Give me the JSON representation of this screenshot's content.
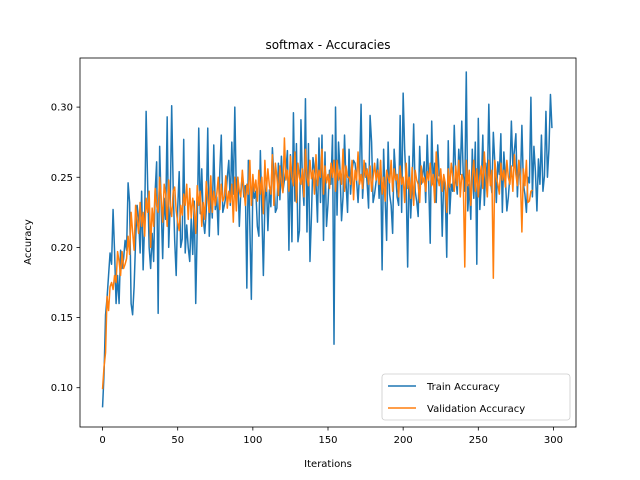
{
  "chart_data": {
    "type": "line",
    "title": "softmax - Accuracies",
    "xlabel": "Iterations",
    "ylabel": "Accuracy",
    "xlim": [
      -15,
      315
    ],
    "ylim": [
      0.072,
      0.335
    ],
    "xticks": [
      0,
      50,
      100,
      150,
      200,
      250,
      300
    ],
    "yticks": [
      0.1,
      0.15,
      0.2,
      0.25,
      0.3
    ],
    "ytick_labels": [
      "0.10",
      "0.15",
      "0.20",
      "0.25",
      "0.30"
    ],
    "grid": false,
    "legend_position": "lower-right",
    "series": [
      {
        "name": "Train Accuracy",
        "color": "#1f77b4",
        "values": [
          0.086,
          0.11,
          0.152,
          0.164,
          0.18,
          0.196,
          0.188,
          0.227,
          0.197,
          0.16,
          0.18,
          0.16,
          0.198,
          0.185,
          0.192,
          0.205,
          0.198,
          0.246,
          0.232,
          0.16,
          0.152,
          0.172,
          0.205,
          0.23,
          0.22,
          0.196,
          0.24,
          0.184,
          0.218,
          0.297,
          0.245,
          0.2,
          0.185,
          0.21,
          0.19,
          0.24,
          0.261,
          0.153,
          0.272,
          0.23,
          0.192,
          0.235,
          0.22,
          0.293,
          0.2,
          0.23,
          0.301,
          0.242,
          0.205,
          0.18,
          0.228,
          0.254,
          0.2,
          0.206,
          0.277,
          0.196,
          0.216,
          0.2,
          0.19,
          0.221,
          0.195,
          0.233,
          0.16,
          0.215,
          0.285,
          0.224,
          0.256,
          0.22,
          0.21,
          0.226,
          0.285,
          0.208,
          0.24,
          0.221,
          0.273,
          0.227,
          0.236,
          0.209,
          0.254,
          0.28,
          0.225,
          0.23,
          0.236,
          0.25,
          0.262,
          0.23,
          0.275,
          0.238,
          0.3,
          0.239,
          0.25,
          0.215,
          0.24,
          0.251,
          0.236,
          0.244,
          0.171,
          0.262,
          0.215,
          0.163,
          0.245,
          0.235,
          0.24,
          0.215,
          0.208,
          0.269,
          0.225,
          0.18,
          0.232,
          0.248,
          0.212,
          0.241,
          0.229,
          0.271,
          0.25,
          0.225,
          0.228,
          0.26,
          0.234,
          0.265,
          0.24,
          0.248,
          0.255,
          0.269,
          0.198,
          0.266,
          0.204,
          0.296,
          0.233,
          0.274,
          0.204,
          0.212,
          0.291,
          0.246,
          0.23,
          0.306,
          0.211,
          0.274,
          0.19,
          0.223,
          0.264,
          0.256,
          0.246,
          0.218,
          0.278,
          0.232,
          0.28,
          0.205,
          0.268,
          0.215,
          0.231,
          0.255,
          0.245,
          0.28,
          0.131,
          0.3,
          0.223,
          0.275,
          0.255,
          0.219,
          0.236,
          0.28,
          0.246,
          0.225,
          0.27,
          0.238,
          0.255,
          0.262,
          0.26,
          0.248,
          0.232,
          0.253,
          0.302,
          0.235,
          0.255,
          0.26,
          0.246,
          0.228,
          0.294,
          0.275,
          0.232,
          0.238,
          0.247,
          0.263,
          0.235,
          0.261,
          0.184,
          0.27,
          0.235,
          0.205,
          0.275,
          0.238,
          0.23,
          0.21,
          0.27,
          0.252,
          0.236,
          0.23,
          0.294,
          0.225,
          0.31,
          0.27,
          0.245,
          0.186,
          0.265,
          0.221,
          0.245,
          0.288,
          0.24,
          0.233,
          0.222,
          0.272,
          0.245,
          0.252,
          0.261,
          0.232,
          0.28,
          0.246,
          0.203,
          0.29,
          0.245,
          0.26,
          0.232,
          0.273,
          0.251,
          0.253,
          0.208,
          0.25,
          0.24,
          0.193,
          0.276,
          0.224,
          0.245,
          0.24,
          0.287,
          0.25,
          0.238,
          0.27,
          0.252,
          0.29,
          0.251,
          0.24,
          0.325,
          0.226,
          0.245,
          0.22,
          0.27,
          0.235,
          0.275,
          0.188,
          0.292,
          0.227,
          0.245,
          0.28,
          0.23,
          0.26,
          0.244,
          0.302,
          0.25,
          0.239,
          0.282,
          0.26,
          0.232,
          0.261,
          0.252,
          0.281,
          0.225,
          0.268,
          0.25,
          0.226,
          0.236,
          0.251,
          0.29,
          0.258,
          0.269,
          0.281,
          0.236,
          0.262,
          0.245,
          0.287,
          0.245,
          0.238,
          0.225,
          0.25,
          0.246,
          0.307,
          0.236,
          0.272,
          0.254,
          0.226,
          0.263,
          0.245,
          0.28,
          0.24,
          0.251,
          0.297,
          0.25,
          0.27,
          0.309,
          0.285
        ]
      },
      {
        "name": "Validation Accuracy",
        "color": "#ff7f0e",
        "values": [
          0.099,
          0.115,
          0.125,
          0.165,
          0.155,
          0.172,
          0.175,
          0.17,
          0.18,
          0.175,
          0.197,
          0.19,
          0.18,
          0.197,
          0.185,
          0.188,
          0.192,
          0.208,
          0.195,
          0.225,
          0.211,
          0.198,
          0.23,
          0.22,
          0.21,
          0.232,
          0.215,
          0.225,
          0.208,
          0.235,
          0.225,
          0.24,
          0.2,
          0.228,
          0.215,
          0.242,
          0.23,
          0.225,
          0.25,
          0.235,
          0.218,
          0.245,
          0.238,
          0.215,
          0.248,
          0.23,
          0.222,
          0.24,
          0.243,
          0.226,
          0.218,
          0.212,
          0.23,
          0.223,
          0.238,
          0.23,
          0.245,
          0.22,
          0.242,
          0.221,
          0.235,
          0.227,
          0.21,
          0.244,
          0.23,
          0.24,
          0.215,
          0.232,
          0.22,
          0.247,
          0.235,
          0.225,
          0.251,
          0.225,
          0.24,
          0.23,
          0.238,
          0.25,
          0.227,
          0.245,
          0.233,
          0.236,
          0.251,
          0.228,
          0.24,
          0.232,
          0.245,
          0.218,
          0.25,
          0.226,
          0.25,
          0.24,
          0.236,
          0.255,
          0.242,
          0.23,
          0.245,
          0.238,
          0.262,
          0.23,
          0.252,
          0.24,
          0.248,
          0.233,
          0.255,
          0.238,
          0.25,
          0.224,
          0.262,
          0.24,
          0.256,
          0.244,
          0.238,
          0.266,
          0.23,
          0.26,
          0.25,
          0.237,
          0.258,
          0.246,
          0.239,
          0.278,
          0.248,
          0.255,
          0.24,
          0.265,
          0.25,
          0.244,
          0.268,
          0.232,
          0.26,
          0.25,
          0.245,
          0.256,
          0.236,
          0.27,
          0.25,
          0.244,
          0.262,
          0.249,
          0.255,
          0.238,
          0.266,
          0.244,
          0.255,
          0.25,
          0.27,
          0.238,
          0.258,
          0.246,
          0.252,
          0.242,
          0.26,
          0.25,
          0.262,
          0.24,
          0.262,
          0.248,
          0.255,
          0.245,
          0.27,
          0.24,
          0.258,
          0.25,
          0.25,
          0.245,
          0.262,
          0.234,
          0.255,
          0.248,
          0.268,
          0.245,
          0.252,
          0.242,
          0.262,
          0.25,
          0.256,
          0.245,
          0.258,
          0.24,
          0.25,
          0.26,
          0.248,
          0.255,
          0.245,
          0.262,
          0.238,
          0.25,
          0.233,
          0.255,
          0.25,
          0.246,
          0.262,
          0.24,
          0.256,
          0.248,
          0.252,
          0.236,
          0.258,
          0.245,
          0.25,
          0.232,
          0.26,
          0.242,
          0.25,
          0.235,
          0.257,
          0.23,
          0.255,
          0.248,
          0.245,
          0.232,
          0.258,
          0.246,
          0.25,
          0.24,
          0.254,
          0.248,
          0.26,
          0.244,
          0.252,
          0.232,
          0.268,
          0.25,
          0.244,
          0.256,
          0.24,
          0.252,
          0.246,
          0.225,
          0.256,
          0.243,
          0.26,
          0.25,
          0.24,
          0.258,
          0.244,
          0.262,
          0.236,
          0.252,
          0.248,
          0.186,
          0.262,
          0.244,
          0.255,
          0.23,
          0.25,
          0.262,
          0.24,
          0.256,
          0.236,
          0.25,
          0.258,
          0.242,
          0.268,
          0.25,
          0.236,
          0.262,
          0.244,
          0.255,
          0.178,
          0.262,
          0.25,
          0.245,
          0.238,
          0.26,
          0.248,
          0.255,
          0.243,
          0.262,
          0.25,
          0.245,
          0.258,
          0.24,
          0.266,
          0.252,
          0.244,
          0.262,
          0.25,
          0.211,
          0.256,
          0.244,
          0.262,
          0.232,
          0.233,
          0.24,
          0.241
        ]
      }
    ]
  }
}
